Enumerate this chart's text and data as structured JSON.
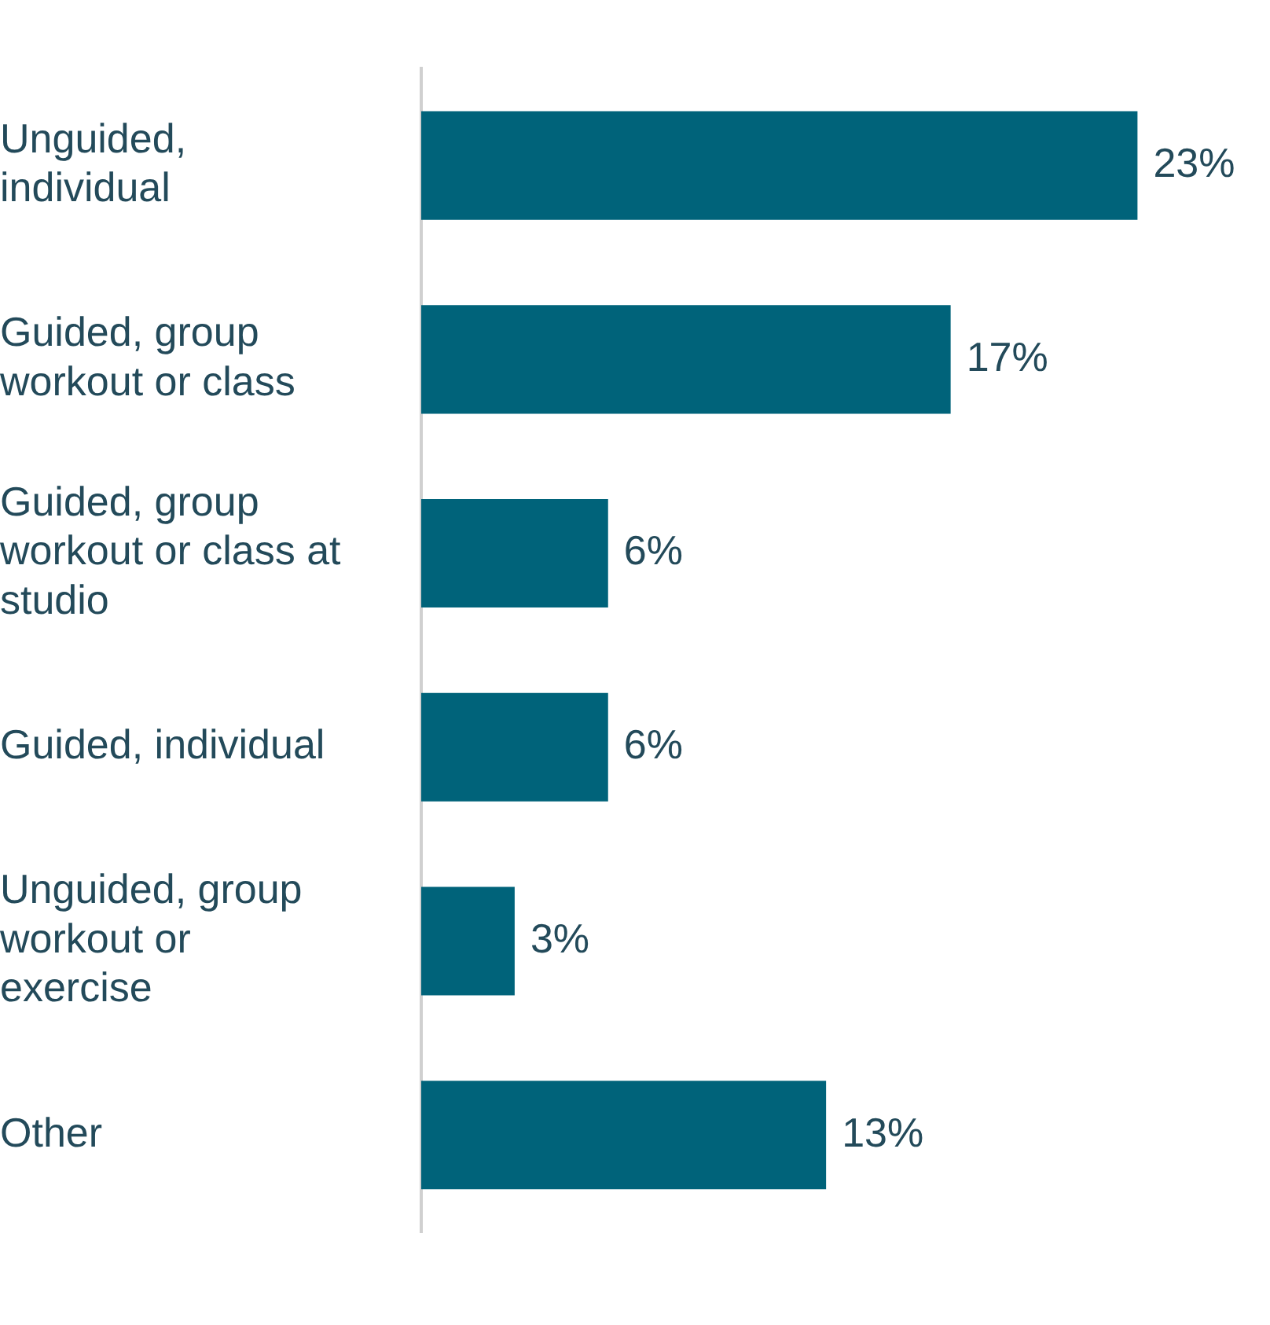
{
  "chart_data": {
    "type": "bar",
    "orientation": "horizontal",
    "categories": [
      "Unguided, individual",
      "Guided, group workout or class",
      "Guided, group workout or class at studio",
      "Guided, individual",
      "Unguided, group workout or exercise",
      "Other"
    ],
    "values": [
      23,
      17,
      6,
      6,
      3,
      13
    ],
    "value_labels": [
      "23%",
      "17%",
      "6%",
      "6%",
      "3%",
      "13%"
    ],
    "color": "#00637a"
  }
}
